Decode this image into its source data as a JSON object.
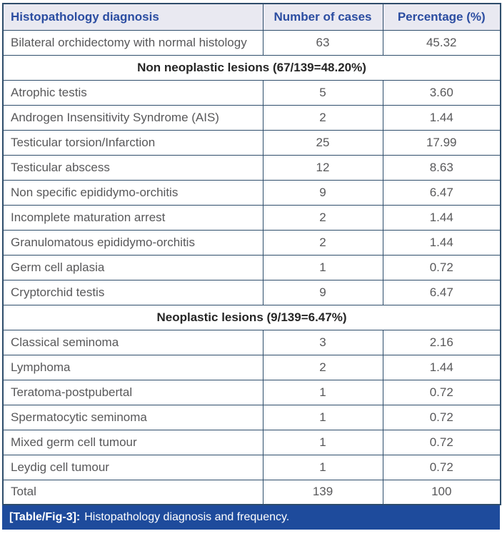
{
  "table": {
    "columns": [
      "Histopathology diagnosis",
      "Number of cases",
      "Percentage (%)"
    ],
    "rows": [
      {
        "type": "data",
        "diagnosis": "Bilateral orchidectomy with normal histology",
        "cases": "63",
        "percentage": "45.32"
      },
      {
        "type": "section",
        "label": "Non neoplastic lesions (67/139=48.20%)"
      },
      {
        "type": "data",
        "diagnosis": "Atrophic testis",
        "cases": "5",
        "percentage": "3.60"
      },
      {
        "type": "data",
        "diagnosis": "Androgen Insensitivity Syndrome (AIS)",
        "cases": "2",
        "percentage": "1.44"
      },
      {
        "type": "data",
        "diagnosis": "Testicular torsion/Infarction",
        "cases": "25",
        "percentage": "17.99"
      },
      {
        "type": "data",
        "diagnosis": "Testicular abscess",
        "cases": "12",
        "percentage": "8.63"
      },
      {
        "type": "data",
        "diagnosis": "Non specific epididymo-orchitis",
        "cases": "9",
        "percentage": "6.47"
      },
      {
        "type": "data",
        "diagnosis": "Incomplete maturation arrest",
        "cases": "2",
        "percentage": "1.44"
      },
      {
        "type": "data",
        "diagnosis": "Granulomatous epididymo-orchitis",
        "cases": "2",
        "percentage": "1.44"
      },
      {
        "type": "data",
        "diagnosis": "Germ cell aplasia",
        "cases": "1",
        "percentage": "0.72"
      },
      {
        "type": "data",
        "diagnosis": "Cryptorchid testis",
        "cases": "9",
        "percentage": "6.47"
      },
      {
        "type": "section",
        "label": "Neoplastic lesions (9/139=6.47%)"
      },
      {
        "type": "data",
        "diagnosis": "Classical seminoma",
        "cases": "3",
        "percentage": "2.16"
      },
      {
        "type": "data",
        "diagnosis": "Lymphoma",
        "cases": "2",
        "percentage": "1.44"
      },
      {
        "type": "data",
        "diagnosis": "Teratoma-postpubertal",
        "cases": "1",
        "percentage": "0.72"
      },
      {
        "type": "data",
        "diagnosis": "Spermatocytic seminoma",
        "cases": "1",
        "percentage": "0.72"
      },
      {
        "type": "data",
        "diagnosis": "Mixed germ cell tumour",
        "cases": "1",
        "percentage": "0.72"
      },
      {
        "type": "data",
        "diagnosis": "Leydig cell tumour",
        "cases": "1",
        "percentage": "0.72"
      },
      {
        "type": "data",
        "diagnosis": "Total",
        "cases": "139",
        "percentage": "100"
      }
    ]
  },
  "caption": {
    "tag": "[Table/Fig-3]:",
    "text": "Histopathology diagnosis and frequency."
  },
  "colors": {
    "border": "#2e4d6b",
    "header_background": "#e9e9f1",
    "header_text": "#2b4da1",
    "body_text": "#58585a",
    "section_text": "#262626",
    "caption_background": "#1e4b9c",
    "caption_text": "#ffffff"
  }
}
